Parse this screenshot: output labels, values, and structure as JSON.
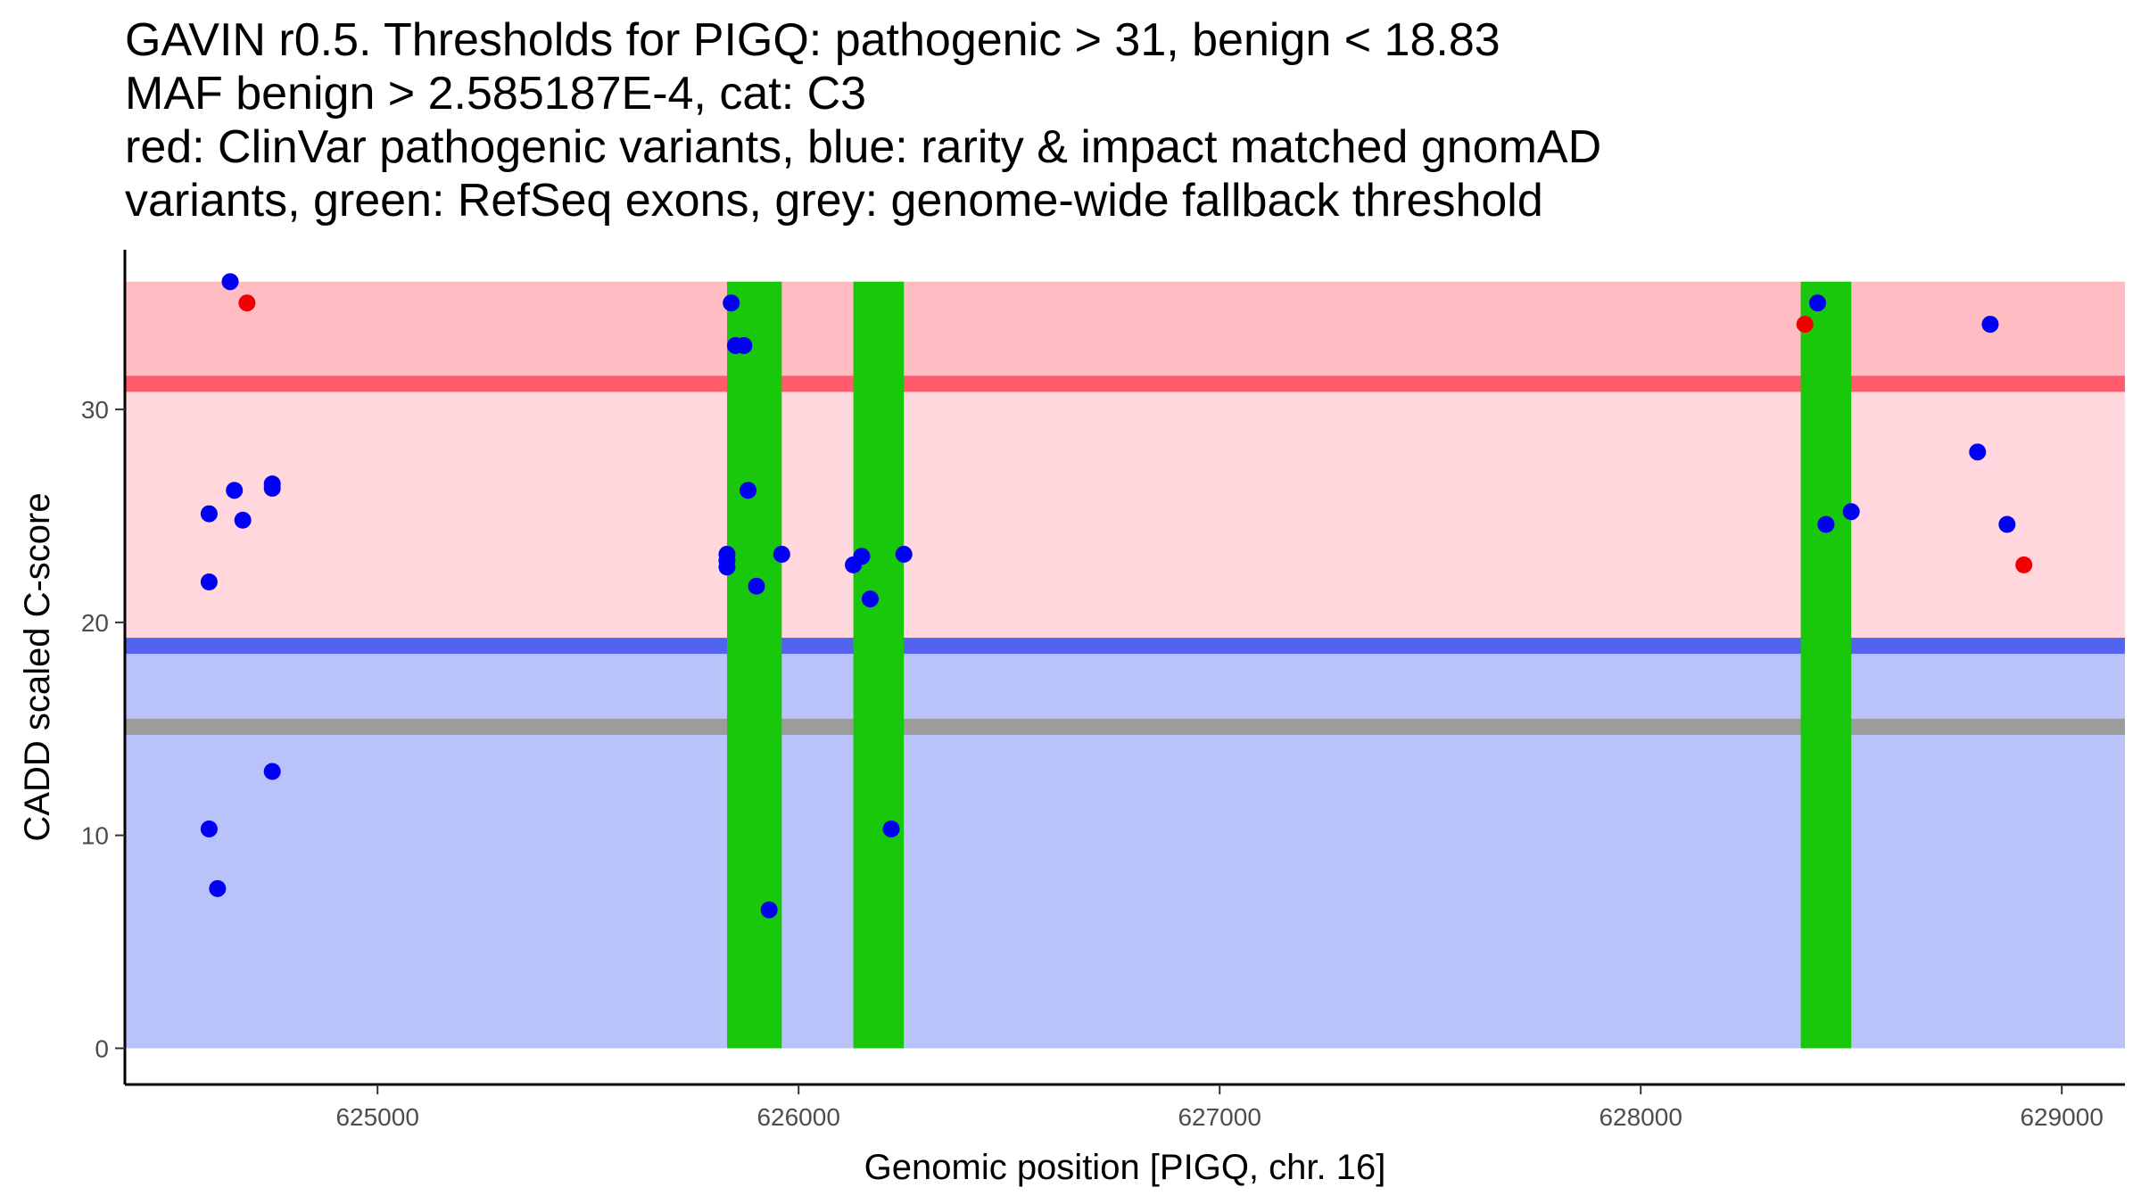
{
  "chart_data": {
    "type": "scatter",
    "title_lines": [
      "GAVIN r0.5. Thresholds for PIGQ: pathogenic > 31, benign < 18.83",
      "MAF benign > 2.585187E-4, cat: C3",
      "red: ClinVar pathogenic variants, blue: rarity & impact matched gnomAD",
      "variants, green: RefSeq exons, grey: genome-wide fallback threshold"
    ],
    "xlabel": "Genomic position [PIGQ, chr. 16]",
    "ylabel": "CADD scaled C-score",
    "xlim": [
      624400,
      629150
    ],
    "ylim": [
      -1.7,
      37.5
    ],
    "x_ticks": [
      625000,
      626000,
      627000,
      628000,
      629000
    ],
    "x_tick_labels": [
      "625000",
      "626000",
      "627000",
      "628000",
      "629000"
    ],
    "y_ticks": [
      0,
      10,
      20,
      30
    ],
    "y_tick_labels": [
      "0",
      "10",
      "20",
      "30"
    ],
    "background_x_range": [
      624400,
      629150
    ],
    "bands": [
      {
        "name": "pathogenic-zone-upper",
        "y0": 31,
        "y1": 36,
        "color": "#ffbcc2"
      },
      {
        "name": "pathogenic-zone-lower",
        "y0": 18.83,
        "y1": 31,
        "color": "#ffd7dc"
      },
      {
        "name": "benign-zone",
        "y0": 0,
        "y1": 18.83,
        "color": "#bac2fa"
      }
    ],
    "threshold_lines": [
      {
        "name": "pathogenic-threshold",
        "y": 31.2,
        "color": "#ff5b6d"
      },
      {
        "name": "benign-threshold",
        "y": 18.9,
        "color": "#5263f0"
      },
      {
        "name": "fallback-threshold",
        "y": 15.1,
        "color": "#9c9c9c"
      }
    ],
    "exons": [
      {
        "x0": 625830,
        "x1": 625960
      },
      {
        "x0": 626130,
        "x1": 626250
      },
      {
        "x0": 628380,
        "x1": 628500
      }
    ],
    "exon_color": "#19c80a",
    "series": [
      {
        "name": "ClinVar pathogenic variants",
        "color": "#f00000",
        "points": [
          [
            624690,
            35.0
          ],
          [
            628390,
            34.0
          ],
          [
            628910,
            22.7
          ]
        ]
      },
      {
        "name": "rarity & impact matched gnomAD variants",
        "color": "#0000f5",
        "points": [
          [
            624650,
            36.0
          ],
          [
            624600,
            25.1
          ],
          [
            624660,
            26.2
          ],
          [
            624680,
            24.8
          ],
          [
            624600,
            21.9
          ],
          [
            624750,
            26.5
          ],
          [
            624750,
            26.3
          ],
          [
            624750,
            13.0
          ],
          [
            624600,
            10.3
          ],
          [
            624620,
            7.5
          ],
          [
            625840,
            35.0
          ],
          [
            625850,
            33.0
          ],
          [
            625870,
            33.0
          ],
          [
            625880,
            26.2
          ],
          [
            625830,
            23.2
          ],
          [
            625830,
            22.9
          ],
          [
            625830,
            22.6
          ],
          [
            625960,
            23.2
          ],
          [
            625900,
            21.7
          ],
          [
            625930,
            6.5
          ],
          [
            626130,
            22.7
          ],
          [
            626150,
            23.1
          ],
          [
            626170,
            21.1
          ],
          [
            626250,
            23.2
          ],
          [
            626220,
            10.3
          ],
          [
            628420,
            35.0
          ],
          [
            628440,
            24.6
          ],
          [
            628500,
            25.2
          ],
          [
            628830,
            34.0
          ],
          [
            628800,
            28.0
          ],
          [
            628870,
            24.6
          ]
        ]
      }
    ]
  }
}
